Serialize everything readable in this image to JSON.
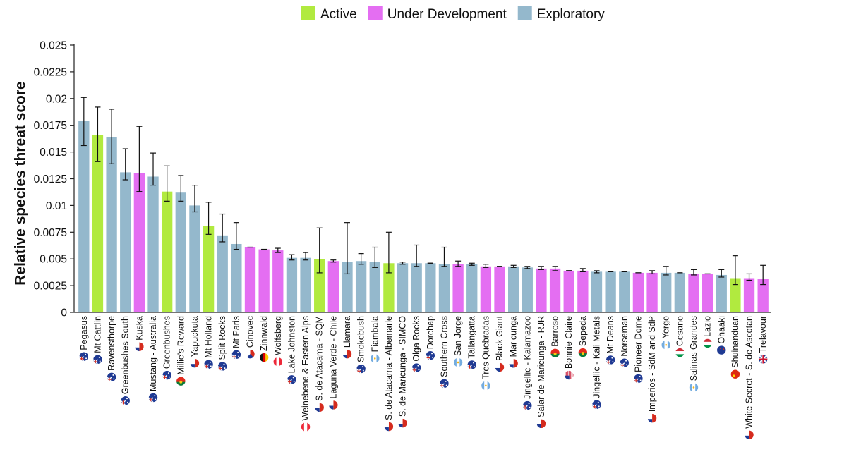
{
  "colors": {
    "Active": "#b1ea3f",
    "Under Development": "#e46ef2",
    "Exploratory": "#94b8cc",
    "axis": "#222222",
    "error_bar": "#111111"
  },
  "legend": {
    "items": [
      "Active",
      "Under Development",
      "Exploratory"
    ],
    "placement": "top-center"
  },
  "chart_data": {
    "type": "bar",
    "ylabel": "Relative species threat score",
    "xlabel": "",
    "ylim": [
      0,
      0.025
    ],
    "yticks": [
      "0",
      "0.0025",
      "0.005",
      "0.0075",
      "0.01",
      "0.0125",
      "0.015",
      "0.0175",
      "0.02",
      "0.0225",
      "0.025"
    ],
    "grid": false,
    "categories": [
      "Pegasus",
      "Mt Cattlin",
      "Ravensthorpe",
      "Greenbushes South",
      "Kuska",
      "Mustang - Australia",
      "Greenbushes",
      "Millie's Reward",
      "Yapuckuta",
      "Mt Holland",
      "Split Rocks",
      "Mt Paris",
      "Cinovec",
      "Zinnwald",
      "Wolfsberg",
      "Lake Johnston",
      "Weinebene & Eastern Alps",
      "S. de Atacama - SQM",
      "Laguna Verde - Chile",
      "Llamara",
      "Smokebush",
      "Fiambala",
      "S. de Atacama - Albemarle",
      "S. de Maricunga - SIMCO",
      "Olga Rocks",
      "Dorchap",
      "Southern Cross",
      "San Jorge",
      "Tallangatta",
      "Tres Quebradas",
      "Black Giant",
      "Maricunga",
      "Jingellic - Kalamazoo",
      "Salar de Maricunga - RJR",
      "Barroso",
      "Bonnie Claire",
      "Sepeda",
      "Jingellic - Kali Metals",
      "Mt Deans",
      "Norseman",
      "Pioneer Dome",
      "Imperios - SdM and SdP",
      "Yergo",
      "Cesano",
      "Salinas Grandes",
      "Lazio",
      "Ohaaki",
      "Shuinanduan",
      "White Secret - S. de Ascotan",
      "Trelavour"
    ],
    "values": [
      0.0179,
      0.0166,
      0.0164,
      0.0131,
      0.013,
      0.0127,
      0.0113,
      0.0112,
      0.01,
      0.0081,
      0.0072,
      0.0064,
      0.0061,
      0.0059,
      0.0058,
      0.0051,
      0.0051,
      0.005,
      0.0048,
      0.0047,
      0.0048,
      0.0047,
      0.0046,
      0.0046,
      0.0046,
      0.0046,
      0.0045,
      0.0045,
      0.0045,
      0.0043,
      0.0043,
      0.0043,
      0.0042,
      0.0041,
      0.0041,
      0.0039,
      0.0039,
      0.0038,
      0.0038,
      0.0038,
      0.0037,
      0.0037,
      0.0037,
      0.0037,
      0.0036,
      0.0036,
      0.0035,
      0.0032,
      0.0032,
      0.0031
    ],
    "err_low": [
      0.0156,
      0.0141,
      0.0139,
      0.0124,
      0.0113,
      0.0119,
      0.0104,
      0.0104,
      0.0094,
      0.0073,
      0.0066,
      0.0059,
      0.0061,
      0.0059,
      0.0056,
      0.0049,
      0.0049,
      0.0037,
      0.0047,
      0.0036,
      0.0045,
      0.0042,
      0.0037,
      0.0045,
      0.0043,
      0.0046,
      0.0043,
      0.0043,
      0.0044,
      0.0042,
      0.0043,
      0.0042,
      0.0041,
      0.004,
      0.0039,
      0.0039,
      0.0038,
      0.0037,
      0.0038,
      0.0038,
      0.0037,
      0.0036,
      0.0035,
      0.0037,
      0.0035,
      0.0036,
      0.0033,
      0.0026,
      0.003,
      0.0026
    ],
    "err_high": [
      0.0201,
      0.0192,
      0.019,
      0.0153,
      0.0174,
      0.0149,
      0.0137,
      0.0128,
      0.0119,
      0.0103,
      0.0092,
      0.0084,
      0.0061,
      0.0059,
      0.006,
      0.0054,
      0.0056,
      0.0079,
      0.0049,
      0.0084,
      0.0055,
      0.0061,
      0.0075,
      0.0047,
      0.0063,
      0.0046,
      0.0061,
      0.0048,
      0.0046,
      0.0045,
      0.0043,
      0.0044,
      0.0043,
      0.0043,
      0.0043,
      0.0039,
      0.0041,
      0.0039,
      0.0038,
      0.0038,
      0.0037,
      0.0039,
      0.0043,
      0.0037,
      0.004,
      0.0036,
      0.004,
      0.0053,
      0.0036,
      0.0044
    ],
    "status": [
      "Exploratory",
      "Active",
      "Exploratory",
      "Exploratory",
      "Under Development",
      "Exploratory",
      "Active",
      "Exploratory",
      "Exploratory",
      "Active",
      "Exploratory",
      "Exploratory",
      "Under Development",
      "Under Development",
      "Under Development",
      "Exploratory",
      "Exploratory",
      "Active",
      "Under Development",
      "Exploratory",
      "Exploratory",
      "Exploratory",
      "Active",
      "Exploratory",
      "Exploratory",
      "Exploratory",
      "Exploratory",
      "Under Development",
      "Exploratory",
      "Under Development",
      "Under Development",
      "Exploratory",
      "Exploratory",
      "Under Development",
      "Under Development",
      "Under Development",
      "Under Development",
      "Exploratory",
      "Exploratory",
      "Exploratory",
      "Under Development",
      "Under Development",
      "Exploratory",
      "Exploratory",
      "Under Development",
      "Under Development",
      "Exploratory",
      "Active",
      "Under Development",
      "Under Development"
    ],
    "flags": [
      "australia",
      "australia",
      "australia",
      "australia",
      "chile",
      "australia",
      "australia",
      "portugal",
      "chile",
      "australia",
      "australia",
      "australia",
      "czechia",
      "germany",
      "austria",
      "australia",
      "austria",
      "chile",
      "chile",
      "chile",
      "australia",
      "argentina",
      "chile",
      "chile",
      "australia",
      "australia",
      "australia",
      "argentina",
      "australia",
      "argentina",
      "chile",
      "chile",
      "australia",
      "chile",
      "portugal",
      "usa",
      "portugal",
      "australia",
      "australia",
      "australia",
      "australia",
      "chile",
      "argentina",
      "italy",
      "argentina",
      "italy",
      "new-zealand",
      "china",
      "chile",
      "uk"
    ]
  }
}
